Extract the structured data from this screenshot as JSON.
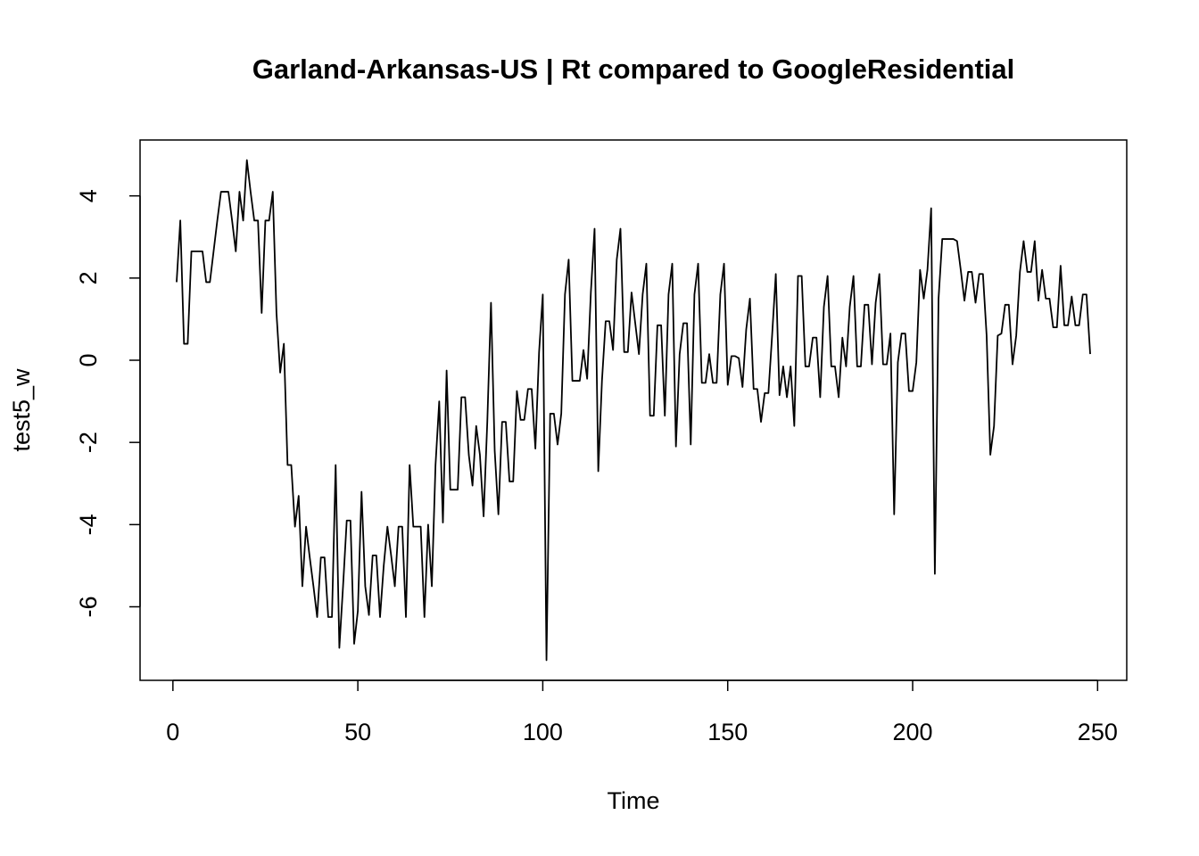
{
  "chart_data": {
    "type": "line",
    "title": "Garland-Arkansas-US | Rt compared to GoogleResidential",
    "xlabel": "Time",
    "ylabel": "test5_w",
    "x": [
      1,
      2,
      3,
      4,
      5,
      6,
      7,
      8,
      9,
      10,
      11,
      12,
      13,
      14,
      15,
      16,
      17,
      18,
      19,
      20,
      21,
      22,
      23,
      24,
      25,
      26,
      27,
      28,
      29,
      30,
      31,
      32,
      33,
      34,
      35,
      36,
      37,
      38,
      39,
      40,
      41,
      42,
      43,
      44,
      45,
      46,
      47,
      48,
      49,
      50,
      51,
      52,
      53,
      54,
      55,
      56,
      57,
      58,
      59,
      60,
      61,
      62,
      63,
      64,
      65,
      66,
      67,
      68,
      69,
      70,
      71,
      72,
      73,
      74,
      75,
      76,
      77,
      78,
      79,
      80,
      81,
      82,
      83,
      84,
      85,
      86,
      87,
      88,
      89,
      90,
      91,
      92,
      93,
      94,
      95,
      96,
      97,
      98,
      99,
      100,
      101,
      102,
      103,
      104,
      105,
      106,
      107,
      108,
      109,
      110,
      111,
      112,
      113,
      114,
      115,
      116,
      117,
      118,
      119,
      120,
      121,
      122,
      123,
      124,
      125,
      126,
      127,
      128,
      129,
      130,
      131,
      132,
      133,
      134,
      135,
      136,
      137,
      138,
      139,
      140,
      141,
      142,
      143,
      144,
      145,
      146,
      147,
      148,
      149,
      150,
      151,
      152,
      153,
      154,
      155,
      156,
      157,
      158,
      159,
      160,
      161,
      162,
      163,
      164,
      165,
      166,
      167,
      168,
      169,
      170,
      171,
      172,
      173,
      174,
      175,
      176,
      177,
      178,
      179,
      180,
      181,
      182,
      183,
      184,
      185,
      186,
      187,
      188,
      189,
      190,
      191,
      192,
      193,
      194,
      195,
      196,
      197,
      198,
      199,
      200,
      201,
      202,
      203,
      204,
      205,
      206,
      207,
      208,
      209,
      210,
      211,
      212,
      213,
      214,
      215,
      216,
      217,
      218,
      219,
      220,
      221,
      222,
      223,
      224,
      225,
      226,
      227,
      228,
      229,
      230,
      231,
      232,
      233,
      234,
      235,
      236,
      237,
      238,
      239,
      240,
      241,
      242,
      243,
      244,
      245,
      246,
      247,
      248
    ],
    "series": [
      {
        "name": "test5_w",
        "color": "#000000",
        "values": [
          1.9,
          3.4,
          0.4,
          0.4,
          2.65,
          2.65,
          2.65,
          2.65,
          1.9,
          1.9,
          2.65,
          3.4,
          4.1,
          4.1,
          4.1,
          3.4,
          2.65,
          4.1,
          3.4,
          4.87,
          4.1,
          3.4,
          3.4,
          1.15,
          3.4,
          3.4,
          4.1,
          1.15,
          -0.3,
          0.4,
          -2.55,
          -2.55,
          -4.05,
          -3.3,
          -5.5,
          -4.05,
          -4.8,
          -5.5,
          -6.25,
          -4.8,
          -4.8,
          -6.25,
          -6.25,
          -2.55,
          -7.0,
          -5.5,
          -3.9,
          -3.9,
          -6.9,
          -6.1,
          -3.2,
          -5.5,
          -6.2,
          -4.75,
          -4.75,
          -6.25,
          -5.0,
          -4.05,
          -4.75,
          -5.5,
          -4.05,
          -4.05,
          -6.25,
          -2.55,
          -4.05,
          -4.05,
          -4.05,
          -6.25,
          -4.0,
          -5.5,
          -2.55,
          -1.0,
          -3.95,
          -0.25,
          -3.15,
          -3.15,
          -3.15,
          -0.9,
          -0.9,
          -2.3,
          -3.05,
          -1.6,
          -2.3,
          -3.8,
          -1.5,
          1.4,
          -2.2,
          -3.75,
          -1.5,
          -1.5,
          -2.95,
          -2.95,
          -0.75,
          -1.45,
          -1.45,
          -0.7,
          -0.7,
          -2.15,
          0.2,
          1.6,
          -7.3,
          -1.3,
          -1.3,
          -2.05,
          -1.3,
          1.6,
          2.45,
          -0.5,
          -0.5,
          -0.5,
          0.25,
          -0.45,
          1.65,
          3.2,
          -2.7,
          -0.5,
          0.95,
          0.95,
          0.25,
          2.45,
          3.2,
          0.2,
          0.2,
          1.65,
          0.9,
          0.15,
          1.6,
          2.35,
          -1.35,
          -1.35,
          0.85,
          0.85,
          -1.35,
          1.6,
          2.35,
          -2.1,
          0.15,
          0.9,
          0.9,
          -2.05,
          1.6,
          2.35,
          -0.55,
          -0.55,
          0.15,
          -0.55,
          -0.55,
          1.6,
          2.35,
          -0.6,
          0.1,
          0.1,
          0.05,
          -0.65,
          0.75,
          1.5,
          -0.7,
          -0.7,
          -1.5,
          -0.8,
          -0.8,
          0.6,
          2.1,
          -0.85,
          -0.15,
          -0.9,
          -0.15,
          -1.6,
          2.05,
          2.05,
          -0.15,
          -0.15,
          0.55,
          0.55,
          -0.9,
          1.3,
          2.05,
          -0.15,
          -0.15,
          -0.9,
          0.55,
          -0.15,
          1.3,
          2.05,
          -0.15,
          -0.15,
          1.35,
          1.35,
          -0.1,
          1.4,
          2.1,
          -0.1,
          -0.1,
          0.65,
          -3.75,
          -0.05,
          0.65,
          0.65,
          -0.75,
          -0.75,
          -0.05,
          2.2,
          1.5,
          2.2,
          3.7,
          -5.2,
          1.5,
          2.95,
          2.95,
          2.95,
          2.95,
          2.9,
          2.2,
          1.45,
          2.15,
          2.15,
          1.4,
          2.1,
          2.1,
          0.6,
          -2.3,
          -1.6,
          0.6,
          0.65,
          1.35,
          1.35,
          -0.1,
          0.6,
          2.15,
          2.9,
          2.15,
          2.15,
          2.9,
          1.45,
          2.2,
          1.5,
          1.5,
          0.8,
          0.8,
          2.3,
          0.85,
          0.85,
          1.55,
          0.85,
          0.85,
          1.6,
          1.6,
          0.15
        ]
      }
    ],
    "xlim": [
      -8.88,
      257.88
    ],
    "ylim": [
      -7.79,
      5.36
    ],
    "xticks": [
      0,
      50,
      100,
      150,
      200,
      250
    ],
    "yticks": [
      -6,
      -4,
      -2,
      0,
      2,
      4
    ]
  }
}
